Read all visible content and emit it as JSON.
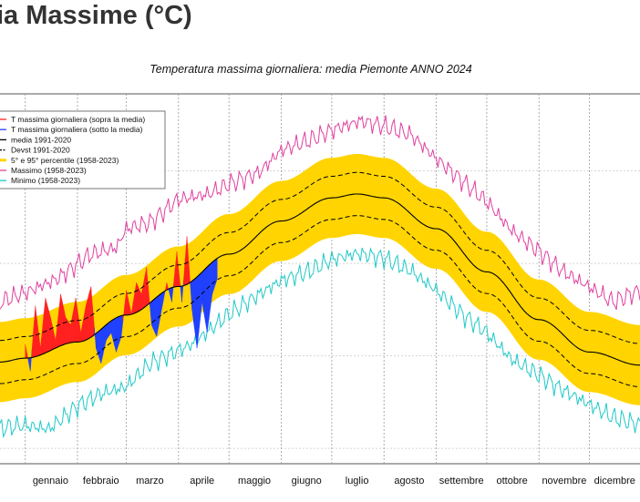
{
  "page": {
    "heading": "ia Massime (°C)"
  },
  "chart_data": {
    "type": "area",
    "title": "Temperatura massima giornaliera: media Piemonte ANNO 2024",
    "xlabel": "",
    "ylabel": "",
    "x_domain": [
      -14,
      366
    ],
    "ylim": [
      -6,
      42
    ],
    "grid": true,
    "legend_position": "top-left",
    "months": [
      {
        "label": "gennaio",
        "start_day": 1,
        "mid_day": 16
      },
      {
        "label": "febbraio",
        "start_day": 32,
        "mid_day": 46
      },
      {
        "label": "marzo",
        "start_day": 61,
        "mid_day": 75
      },
      {
        "label": "aprile",
        "start_day": 92,
        "mid_day": 106
      },
      {
        "label": "maggio",
        "start_day": 122,
        "mid_day": 137
      },
      {
        "label": "giugno",
        "start_day": 153,
        "mid_day": 168
      },
      {
        "label": "luglio",
        "start_day": 183,
        "mid_day": 198
      },
      {
        "label": "agosto",
        "start_day": 214,
        "mid_day": 229
      },
      {
        "label": "settembre",
        "start_day": 245,
        "mid_day": 260
      },
      {
        "label": "ottobre",
        "start_day": 275,
        "mid_day": 290
      },
      {
        "label": "novembre",
        "start_day": 306,
        "mid_day": 321
      },
      {
        "label": "dicembre",
        "start_day": 336,
        "mid_day": 351
      }
    ],
    "legend": [
      {
        "key": "above",
        "label": "T massima giornaliera (sopra la media)",
        "color": "#ff2020"
      },
      {
        "key": "below",
        "label": "T massima giornaliera (sotto la media)",
        "color": "#2040ff"
      },
      {
        "key": "mean",
        "label": "media 1991-2020",
        "color": "#000000"
      },
      {
        "key": "std",
        "label": "Devst 1991-2020",
        "color": "#000000"
      },
      {
        "key": "pct",
        "label": "5° e 95° percentile (1958-2023)",
        "color": "#ffd400"
      },
      {
        "key": "max",
        "label": "Massimo (1958-2023)",
        "color": "#e0409f"
      },
      {
        "key": "min",
        "label": "Minimo (1958-2023)",
        "color": "#20c8c8"
      }
    ],
    "climatology": {
      "mean_1991_2020": [
        [
          -14,
          7.2
        ],
        [
          1,
          7.7
        ],
        [
          32,
          9.8
        ],
        [
          61,
          13.3
        ],
        [
          92,
          17.0
        ],
        [
          122,
          21.2
        ],
        [
          153,
          25.5
        ],
        [
          183,
          28.5
        ],
        [
          198,
          29.0
        ],
        [
          214,
          28.5
        ],
        [
          245,
          24.5
        ],
        [
          275,
          18.9
        ],
        [
          306,
          12.7
        ],
        [
          336,
          8.5
        ],
        [
          366,
          6.8
        ]
      ],
      "devst_band_half_width": 2.8,
      "pct_band_half_width": 5.2
    },
    "record_max_1958_2023": [
      [
        -14,
        15.0
      ],
      [
        1,
        16.2
      ],
      [
        20,
        18.0
      ],
      [
        40,
        21.2
      ],
      [
        55,
        22.0
      ],
      [
        61,
        24.5
      ],
      [
        75,
        25.3
      ],
      [
        92,
        28.3
      ],
      [
        110,
        29.0
      ],
      [
        122,
        30.3
      ],
      [
        140,
        31.8
      ],
      [
        153,
        34.7
      ],
      [
        170,
        36.0
      ],
      [
        183,
        37.3
      ],
      [
        200,
        38.5
      ],
      [
        214,
        37.8
      ],
      [
        230,
        36.7
      ],
      [
        245,
        33.6
      ],
      [
        260,
        30.8
      ],
      [
        275,
        28.0
      ],
      [
        290,
        24.2
      ],
      [
        306,
        21.6
      ],
      [
        320,
        19.0
      ],
      [
        336,
        16.9
      ],
      [
        350,
        15.0
      ],
      [
        366,
        16.5
      ]
    ],
    "record_min_1958_2023": [
      [
        -14,
        -1.4
      ],
      [
        1,
        -1.0
      ],
      [
        15,
        -1.5
      ],
      [
        32,
        1.5
      ],
      [
        45,
        3.0
      ],
      [
        61,
        4.0
      ],
      [
        75,
        7.0
      ],
      [
        92,
        8.7
      ],
      [
        100,
        9.5
      ],
      [
        122,
        13.4
      ],
      [
        140,
        16.0
      ],
      [
        153,
        17.8
      ],
      [
        170,
        19.0
      ],
      [
        183,
        20.5
      ],
      [
        198,
        21.3
      ],
      [
        214,
        20.7
      ],
      [
        230,
        19.0
      ],
      [
        245,
        16.5
      ],
      [
        260,
        13.5
      ],
      [
        275,
        11.0
      ],
      [
        290,
        7.5
      ],
      [
        306,
        5.5
      ],
      [
        320,
        3.6
      ],
      [
        336,
        1.7
      ],
      [
        350,
        0.0
      ],
      [
        366,
        -0.9
      ]
    ],
    "observed_2024": [
      [
        1,
        9.5
      ],
      [
        4,
        6.0
      ],
      [
        7,
        14.5
      ],
      [
        10,
        9.0
      ],
      [
        13,
        15.5
      ],
      [
        16,
        13.0
      ],
      [
        19,
        10.0
      ],
      [
        22,
        16.0
      ],
      [
        25,
        13.0
      ],
      [
        28,
        12.0
      ],
      [
        31,
        15.5
      ],
      [
        34,
        11.0
      ],
      [
        37,
        14.5
      ],
      [
        40,
        17.0
      ],
      [
        43,
        9.0
      ],
      [
        46,
        7.0
      ],
      [
        49,
        10.0
      ],
      [
        52,
        11.0
      ],
      [
        55,
        8.5
      ],
      [
        58,
        10.5
      ],
      [
        61,
        16.5
      ],
      [
        64,
        13.5
      ],
      [
        67,
        17.5
      ],
      [
        70,
        16.0
      ],
      [
        73,
        19.5
      ],
      [
        76,
        12.0
      ],
      [
        79,
        10.5
      ],
      [
        82,
        14.0
      ],
      [
        85,
        17.5
      ],
      [
        88,
        15.0
      ],
      [
        91,
        21.5
      ],
      [
        94,
        15.0
      ],
      [
        97,
        23.5
      ],
      [
        100,
        14.0
      ],
      [
        103,
        9.0
      ],
      [
        106,
        15.0
      ],
      [
        109,
        11.0
      ],
      [
        112,
        16.0
      ],
      [
        115,
        18.0
      ]
    ]
  }
}
